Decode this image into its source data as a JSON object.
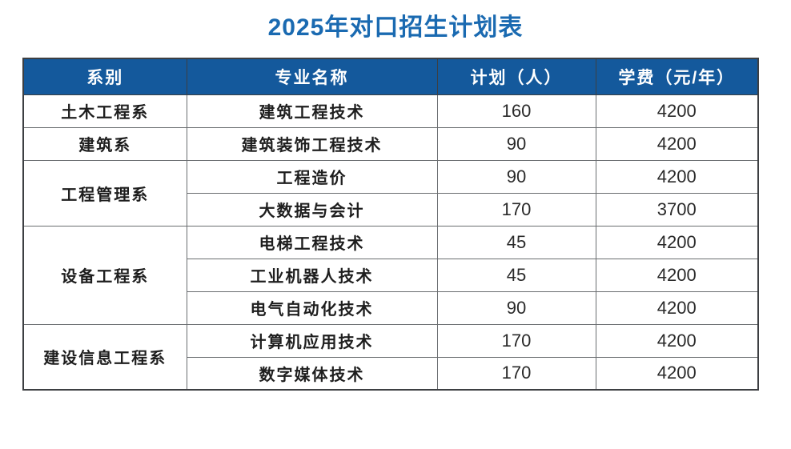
{
  "title": "2025年对口招生计划表",
  "table": {
    "headers": [
      "系别",
      "专业名称",
      "计划（人）",
      "学费（元/年）"
    ],
    "departments": [
      {
        "name": "土木工程系",
        "majors": [
          {
            "major": "建筑工程技术",
            "plan": "160",
            "tuition": "4200"
          }
        ]
      },
      {
        "name": "建筑系",
        "majors": [
          {
            "major": "建筑装饰工程技术",
            "plan": "90",
            "tuition": "4200"
          }
        ]
      },
      {
        "name": "工程管理系",
        "majors": [
          {
            "major": "工程造价",
            "plan": "90",
            "tuition": "4200"
          },
          {
            "major": "大数据与会计",
            "plan": "170",
            "tuition": "3700"
          }
        ]
      },
      {
        "name": "设备工程系",
        "majors": [
          {
            "major": "电梯工程技术",
            "plan": "45",
            "tuition": "4200"
          },
          {
            "major": "工业机器人技术",
            "plan": "45",
            "tuition": "4200"
          },
          {
            "major": "电气自动化技术",
            "plan": "90",
            "tuition": "4200"
          }
        ]
      },
      {
        "name": "建设信息工程系",
        "majors": [
          {
            "major": "计算机应用技术",
            "plan": "170",
            "tuition": "4200"
          },
          {
            "major": "数字媒体技术",
            "plan": "170",
            "tuition": "4200"
          }
        ]
      }
    ]
  },
  "chart_data": {
    "type": "table",
    "title": "2025年对口招生计划表",
    "columns": [
      "系别",
      "专业名称",
      "计划（人）",
      "学费（元/年）"
    ],
    "rows": [
      [
        "土木工程系",
        "建筑工程技术",
        160,
        4200
      ],
      [
        "建筑系",
        "建筑装饰工程技术",
        90,
        4200
      ],
      [
        "工程管理系",
        "工程造价",
        90,
        4200
      ],
      [
        "工程管理系",
        "大数据与会计",
        170,
        3700
      ],
      [
        "设备工程系",
        "电梯工程技术",
        45,
        4200
      ],
      [
        "设备工程系",
        "工业机器人技术",
        45,
        4200
      ],
      [
        "设备工程系",
        "电气自动化技术",
        90,
        4200
      ],
      [
        "建设信息工程系",
        "计算机应用技术",
        170,
        4200
      ],
      [
        "建设信息工程系",
        "数字媒体技术",
        170,
        4200
      ]
    ]
  },
  "colors": {
    "header_bg": "#14599c",
    "header_text": "#ffffff",
    "title_text": "#1a6ab1",
    "border_dark": "#3d3f42",
    "border_light": "#6a6d70",
    "body_text": "#1e1e1e"
  }
}
